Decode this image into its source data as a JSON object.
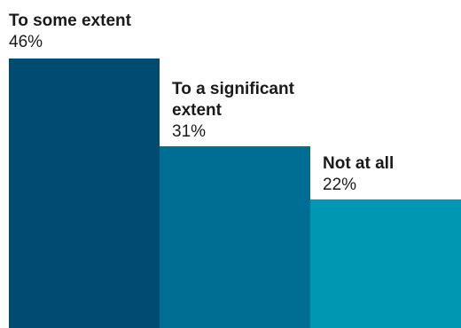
{
  "chart_data": {
    "type": "bar",
    "categories": [
      "To some extent",
      "To a significant extent",
      "Not at all"
    ],
    "values": [
      46,
      31,
      22
    ],
    "value_labels": [
      "46%",
      "31%",
      "22%"
    ],
    "colors": [
      "#004b72",
      "#006e93",
      "#0097b3"
    ],
    "ylim": [
      0,
      46
    ],
    "grid": false,
    "legend": "none"
  }
}
